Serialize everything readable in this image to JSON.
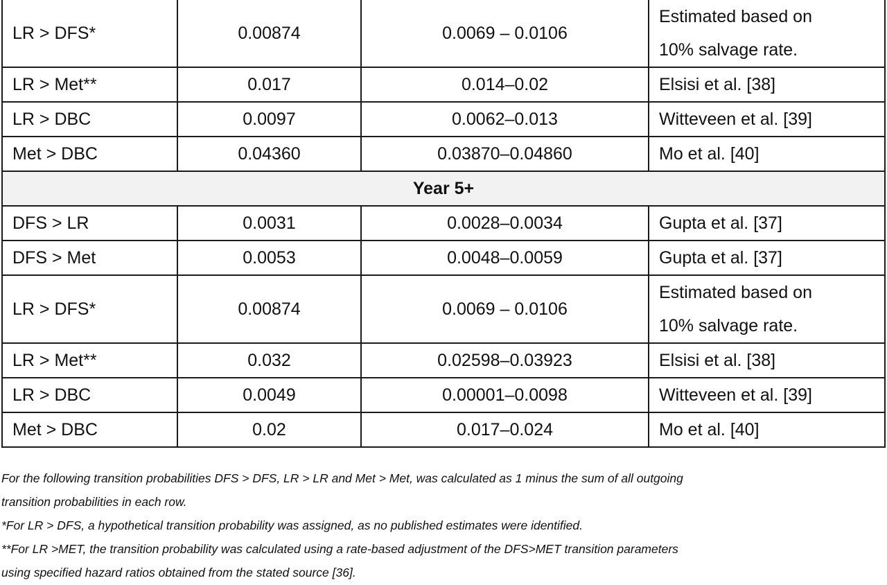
{
  "table": {
    "rows_block1": [
      {
        "transition": "LR > DFS*",
        "value": "0.00874",
        "range": "0.0069 – 0.0106",
        "source_line1": "Estimated based on",
        "source_line2": "10% salvage rate."
      },
      {
        "transition": "LR > Met**",
        "value": "0.017",
        "range": "0.014–0.02",
        "source": "Elsisi et al. [38]"
      },
      {
        "transition": "LR > DBC",
        "value": "0.0097",
        "range": "0.0062–0.013",
        "source": "Witteveen et al. [39]"
      },
      {
        "transition": "Met > DBC",
        "value": "0.04360",
        "range": "0.03870–0.04860",
        "source": "Mo et al. [40]"
      }
    ],
    "section_header": "Year 5+",
    "rows_block2": [
      {
        "transition": "DFS > LR",
        "value": "0.0031",
        "range": "0.0028–0.0034",
        "source": "Gupta et al. [37]"
      },
      {
        "transition": "DFS > Met",
        "value": "0.0053",
        "range": "0.0048–0.0059",
        "source": "Gupta et al. [37]"
      },
      {
        "transition": "LR > DFS*",
        "value": "0.00874",
        "range": "0.0069 – 0.0106",
        "source_line1": "Estimated based on",
        "source_line2": "10% salvage rate."
      },
      {
        "transition": "LR > Met**",
        "value": "0.032",
        "range": "0.02598–0.03923",
        "source": "Elsisi et al. [38]"
      },
      {
        "transition": "LR > DBC",
        "value": "0.0049",
        "range": "0.00001–0.0098",
        "source": "Witteveen et al. [39]"
      },
      {
        "transition": "Met > DBC",
        "value": "0.02",
        "range": "0.017–0.024",
        "source": "Mo et al. [40]"
      }
    ]
  },
  "notes": {
    "note1_line1": "For the following transition probabilities DFS > DFS, LR > LR and Met > Met, was calculated as 1 minus the sum of all outgoing",
    "note1_line2": "transition probabilities in each row.",
    "note2": "*For LR > DFS, a hypothetical transition probability was assigned, as no published estimates were identified.",
    "note3_line1": "**For LR >MET, the transition probability was calculated using a rate-based adjustment of the DFS>MET transition parameters",
    "note3_line2": "using specified hazard ratios obtained from the stated source [36]."
  }
}
